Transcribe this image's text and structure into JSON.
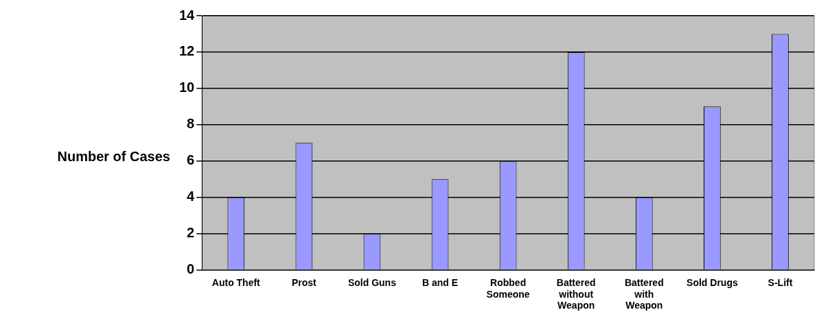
{
  "chart_data": {
    "type": "bar",
    "ylabel": "Number of Cases",
    "categories": [
      "Auto Theft",
      "Prost",
      "Sold Guns",
      "B and E",
      "Robbed Someone",
      "Battered without Weapon",
      "Battered with Weapon",
      "Sold Drugs",
      "S-Lift"
    ],
    "values": [
      4,
      7,
      2,
      5,
      6,
      12,
      4,
      9,
      13
    ],
    "color": "#9999ff",
    "ylim": [
      0,
      14
    ],
    "yticks": [
      0,
      2,
      4,
      6,
      8,
      10,
      12,
      14
    ],
    "grid": "y",
    "legend": false
  }
}
